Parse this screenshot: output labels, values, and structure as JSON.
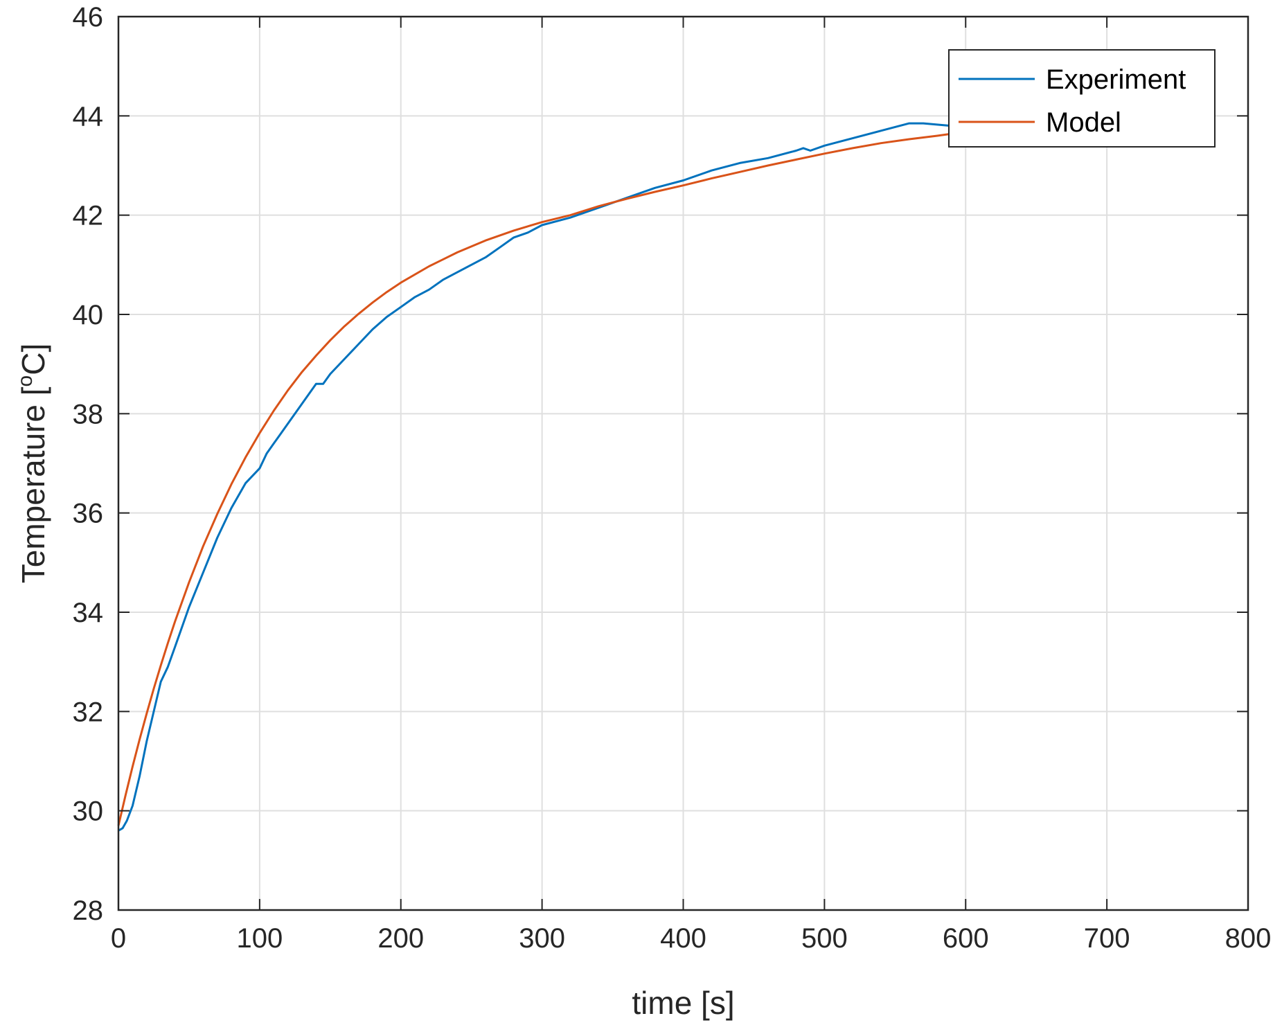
{
  "chart_data": {
    "type": "line",
    "xlabel": "time [s]",
    "ylabel": {
      "base": "Temperature [",
      "superscript": "o",
      "suffix": "C]"
    },
    "xlim": [
      0,
      800
    ],
    "ylim": [
      28,
      46
    ],
    "xticks": [
      0,
      100,
      200,
      300,
      400,
      500,
      600,
      700,
      800
    ],
    "yticks": [
      28,
      30,
      32,
      34,
      36,
      38,
      40,
      42,
      44,
      46
    ],
    "grid": true,
    "legend_position": "top-right",
    "series": [
      {
        "name": "Experiment",
        "color": "#0072BD",
        "x": [
          0,
          3,
          6,
          10,
          15,
          20,
          25,
          30,
          35,
          40,
          50,
          60,
          70,
          80,
          90,
          100,
          105,
          110,
          115,
          120,
          130,
          140,
          145,
          150,
          160,
          170,
          180,
          190,
          200,
          210,
          220,
          230,
          240,
          250,
          260,
          270,
          280,
          290,
          300,
          320,
          350,
          380,
          400,
          420,
          440,
          460,
          480,
          485,
          490,
          500,
          520,
          540,
          560,
          570,
          590
        ],
        "y": [
          29.6,
          29.65,
          29.8,
          30.1,
          30.7,
          31.4,
          32.0,
          32.6,
          32.9,
          33.3,
          34.1,
          34.8,
          35.5,
          36.1,
          36.6,
          36.9,
          37.2,
          37.4,
          37.6,
          37.8,
          38.2,
          38.6,
          38.6,
          38.8,
          39.1,
          39.4,
          39.7,
          39.95,
          40.15,
          40.35,
          40.5,
          40.7,
          40.85,
          41.0,
          41.15,
          41.35,
          41.55,
          41.65,
          41.8,
          41.95,
          42.25,
          42.55,
          42.7,
          42.9,
          43.05,
          43.15,
          43.3,
          43.35,
          43.3,
          43.4,
          43.55,
          43.7,
          43.85,
          43.85,
          43.8
        ]
      },
      {
        "name": "Model",
        "color": "#D95319",
        "x": [
          0,
          5,
          10,
          15,
          20,
          25,
          30,
          35,
          40,
          50,
          60,
          70,
          80,
          90,
          100,
          110,
          120,
          130,
          140,
          150,
          160,
          170,
          180,
          190,
          200,
          220,
          240,
          260,
          280,
          300,
          320,
          340,
          360,
          380,
          400,
          420,
          440,
          460,
          480,
          500,
          520,
          540,
          560,
          580,
          590
        ],
        "y": [
          29.7,
          30.31,
          30.89,
          31.44,
          31.96,
          32.46,
          32.93,
          33.38,
          33.81,
          34.6,
          35.33,
          35.98,
          36.58,
          37.12,
          37.61,
          38.06,
          38.47,
          38.84,
          39.17,
          39.48,
          39.76,
          40.01,
          40.24,
          40.45,
          40.64,
          40.97,
          41.25,
          41.49,
          41.69,
          41.86,
          42.0,
          42.18,
          42.33,
          42.47,
          42.6,
          42.74,
          42.87,
          43.0,
          43.12,
          43.24,
          43.35,
          43.45,
          43.53,
          43.6,
          43.64
        ]
      }
    ]
  }
}
